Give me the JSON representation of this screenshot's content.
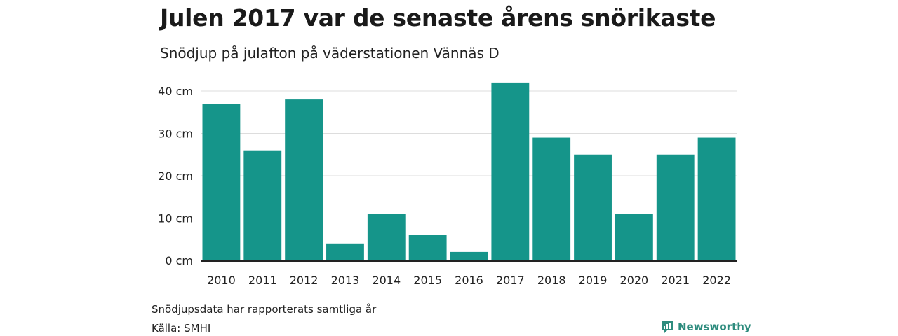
{
  "header": {
    "title": "Julen 2017 var de senaste årens snörikaste",
    "subtitle": "Snödjup på julafton på väderstationen Vännäs D"
  },
  "footer": {
    "note": "Snödjupsdata har rapporterats samtliga år",
    "source": "Källa: SMHI",
    "brand": "Newsworthy"
  },
  "colors": {
    "bar": "#15958a",
    "grid": "#dddddd",
    "baseline": "#222222",
    "brand": "#2e8c7e"
  },
  "chart_data": {
    "type": "bar",
    "categories": [
      "2010",
      "2011",
      "2012",
      "2013",
      "2014",
      "2015",
      "2016",
      "2017",
      "2018",
      "2019",
      "2020",
      "2021",
      "2022"
    ],
    "values": [
      37,
      26,
      38,
      4,
      11,
      6,
      2,
      42,
      29,
      25,
      11,
      25,
      29
    ],
    "ylim": [
      0,
      40
    ],
    "yticks": [
      0,
      10,
      20,
      30,
      40
    ],
    "yticklabels": [
      "0 cm",
      "10 cm",
      "20 cm",
      "30 cm",
      "40 cm"
    ],
    "unit": "cm",
    "grid": true,
    "legend": "none"
  }
}
